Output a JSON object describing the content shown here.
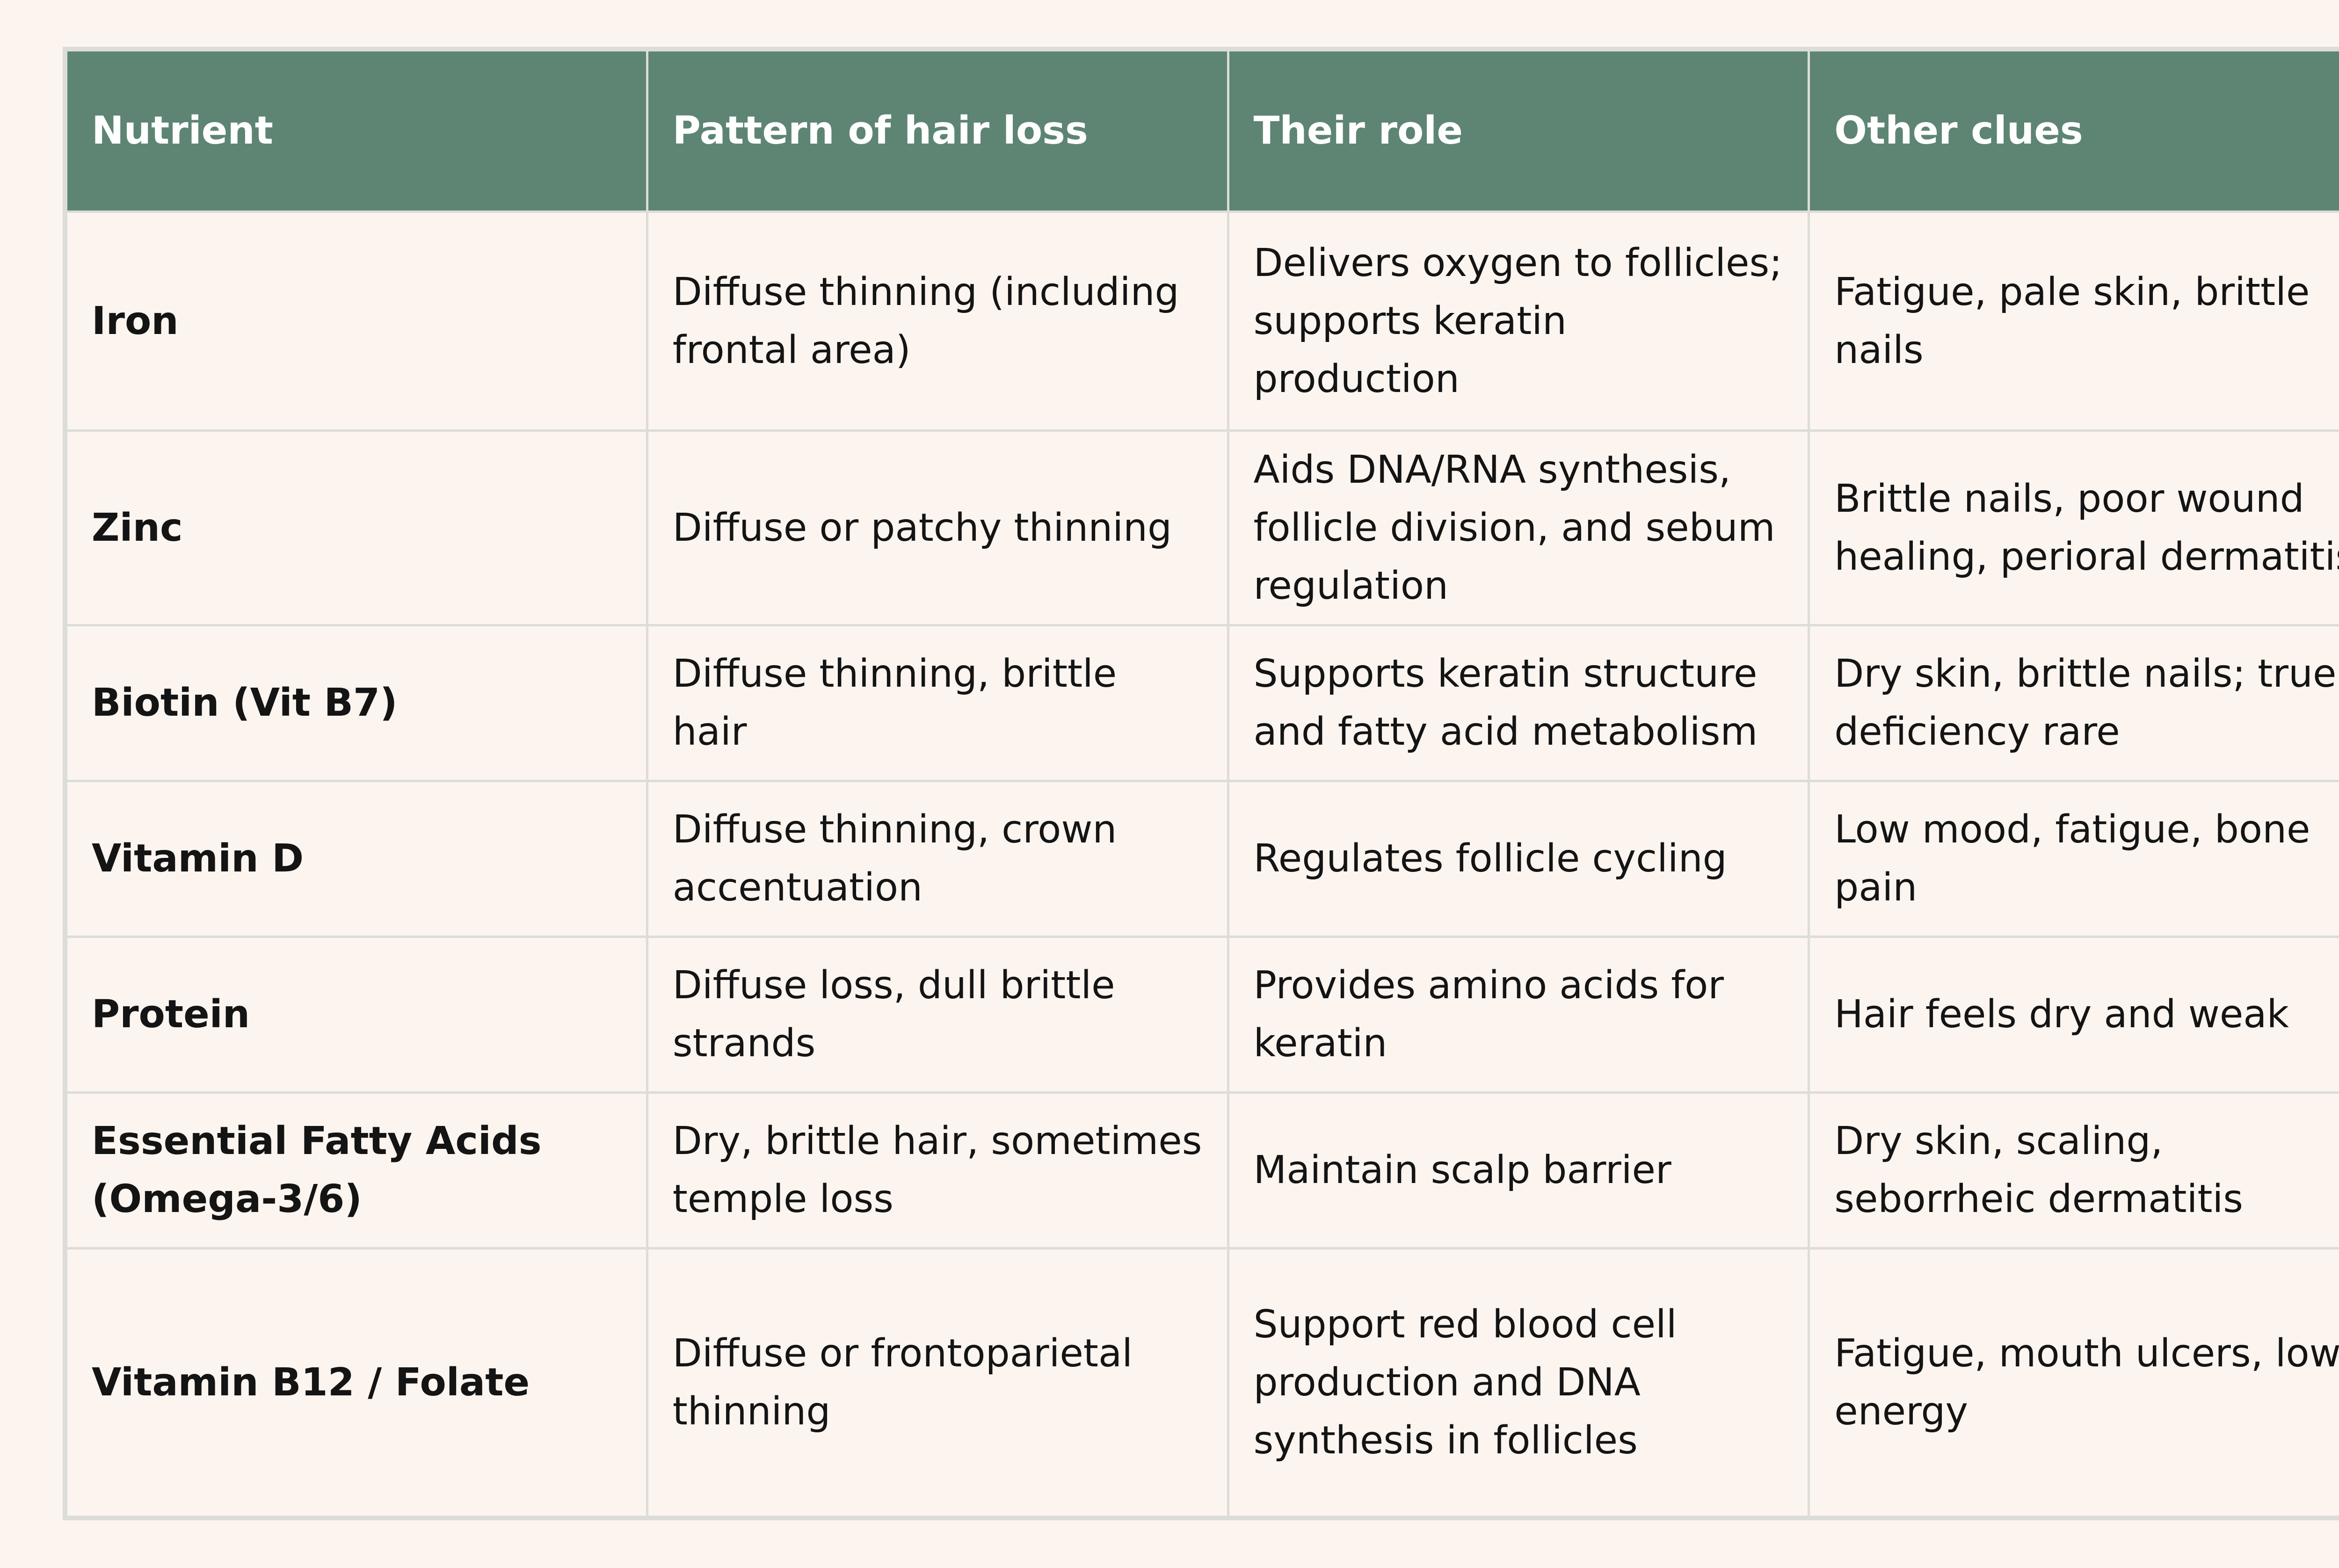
{
  "table": {
    "headers": [
      "Nutrient",
      "Pattern of hair loss",
      "Their role",
      "Other clues"
    ],
    "rows": [
      {
        "nutrient": "Iron",
        "pattern": "Diffuse thinning (including frontal area)",
        "role": "Delivers oxygen to follicles; supports keratin production",
        "clues": "Fatigue, pale skin, brittle nails"
      },
      {
        "nutrient": "Zinc",
        "pattern": "Diffuse or patchy thinning",
        "role": "Aids DNA/RNA synthesis, follicle division, and sebum regulation",
        "clues": "Brittle nails, poor wound healing, perioral dermatitis"
      },
      {
        "nutrient": "Biotin (Vit B7)",
        "pattern": "Diffuse thinning, brittle hair",
        "role": "Supports keratin structure and fatty acid metabolism",
        "clues": "Dry skin, brittle nails; true deficiency rare"
      },
      {
        "nutrient": "Vitamin D",
        "pattern": "Diffuse thinning, crown accentuation",
        "role": "Regulates follicle cycling",
        "clues": "Low mood, fatigue, bone pain"
      },
      {
        "nutrient": "Protein",
        "pattern": "Diffuse loss, dull brittle strands",
        "role": "Provides amino acids for keratin",
        "clues": "Hair feels dry and weak"
      },
      {
        "nutrient": "Essential Fatty Acids (Omega-3/6)",
        "pattern": "Dry, brittle hair, sometimes temple loss",
        "role": "Maintain scalp barrier",
        "clues": "Dry skin, scaling, seborrheic dermatitis"
      },
      {
        "nutrient": "Vitamin B12 / Folate",
        "pattern": "Diffuse or frontoparietal thinning",
        "role": "Support red blood cell production and DNA synthesis in follicles",
        "clues": "Fatigue, mouth ulcers, low energy"
      }
    ]
  },
  "colors": {
    "background": "#fbf4ef",
    "header_bg": "#5e8574",
    "header_text": "#ffffff",
    "grid": "#dcdcd8",
    "body_text": "#141414"
  }
}
